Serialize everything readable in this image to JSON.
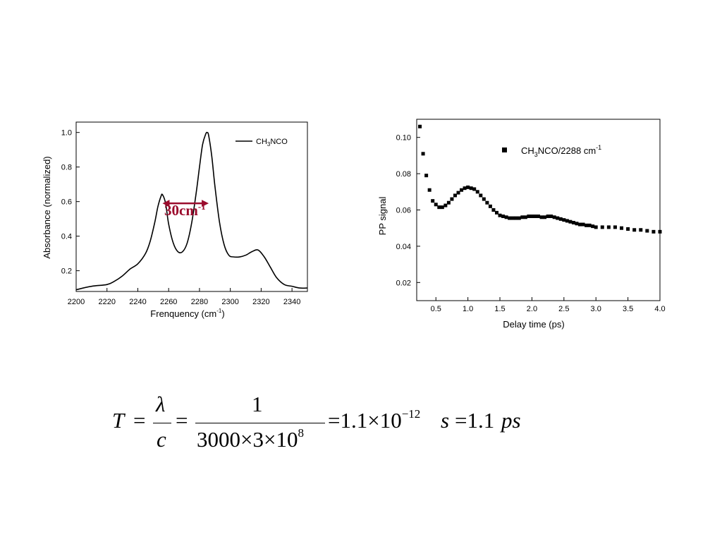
{
  "chart_data": [
    {
      "type": "line",
      "xlabel": "Frenquency (cm",
      "xlabel_sup": "-1",
      "xlabel_end": ")",
      "ylabel": "Absorbance (normalized)",
      "xlim": [
        2200,
        2350
      ],
      "ylim": [
        0.08,
        1.06
      ],
      "x_ticks": [
        2200,
        2220,
        2240,
        2260,
        2280,
        2300,
        2320,
        2340
      ],
      "x_tick_labels": [
        "2200",
        "2220",
        "2240",
        "2260",
        "2280",
        "2300",
        "2320",
        "2340"
      ],
      "y_ticks": [
        0.2,
        0.4,
        0.6,
        0.8,
        1.0
      ],
      "y_tick_labels": [
        "0.2",
        "0.4",
        "0.6",
        "0.8",
        "1.0"
      ],
      "legend_position": "top-right",
      "series": [
        {
          "name": "CH3NCO",
          "name_main": "CH",
          "name_sub": "3",
          "name_end": "NCO",
          "x": [
            2200,
            2210,
            2220,
            2225,
            2230,
            2235,
            2240,
            2245,
            2248,
            2251,
            2253,
            2255,
            2256,
            2258,
            2260,
            2263,
            2266,
            2269,
            2272,
            2275,
            2278,
            2280,
            2282,
            2284,
            2285,
            2286,
            2288,
            2290,
            2293,
            2296,
            2299,
            2302,
            2306,
            2310,
            2314,
            2318,
            2322,
            2326,
            2330,
            2335,
            2340,
            2345,
            2350
          ],
          "y": [
            0.09,
            0.11,
            0.12,
            0.14,
            0.17,
            0.21,
            0.24,
            0.3,
            0.37,
            0.48,
            0.57,
            0.63,
            0.64,
            0.59,
            0.47,
            0.36,
            0.31,
            0.31,
            0.36,
            0.48,
            0.66,
            0.8,
            0.93,
            0.99,
            1.0,
            0.98,
            0.86,
            0.69,
            0.48,
            0.35,
            0.29,
            0.28,
            0.28,
            0.29,
            0.31,
            0.32,
            0.28,
            0.22,
            0.16,
            0.12,
            0.11,
            0.1,
            0.1
          ]
        }
      ],
      "annotation": {
        "text": "30cm",
        "sup": "-1",
        "x_from": 2256,
        "x_to": 2286,
        "y": 0.59,
        "color": "#9b0b2c"
      }
    },
    {
      "type": "scatter",
      "xlabel": "Delay time (ps)",
      "ylabel": "PP signal",
      "xlim": [
        0.2,
        4.0
      ],
      "ylim": [
        0.01,
        0.11
      ],
      "x_ticks": [
        0.5,
        1.0,
        1.5,
        2.0,
        2.5,
        3.0,
        3.5,
        4.0
      ],
      "x_tick_labels": [
        "0.5",
        "1.0",
        "1.5",
        "2.0",
        "2.5",
        "3.0",
        "3.5",
        "4.0"
      ],
      "y_ticks": [
        0.02,
        0.04,
        0.06,
        0.08,
        0.1
      ],
      "y_tick_labels": [
        "0.02",
        "0.04",
        "0.06",
        "0.08",
        "0.10"
      ],
      "legend_position": "top-right",
      "series": [
        {
          "name": "CH3NCO/2288 cm-1",
          "name_main": "CH",
          "name_sub": "3",
          "name_end": "NCO/2288 cm",
          "name_sup": "-1",
          "x": [
            0.25,
            0.3,
            0.35,
            0.4,
            0.45,
            0.5,
            0.55,
            0.6,
            0.65,
            0.7,
            0.75,
            0.8,
            0.85,
            0.9,
            0.95,
            1.0,
            1.05,
            1.1,
            1.15,
            1.2,
            1.25,
            1.3,
            1.35,
            1.4,
            1.45,
            1.5,
            1.55,
            1.6,
            1.65,
            1.7,
            1.75,
            1.8,
            1.85,
            1.9,
            1.95,
            2.0,
            2.05,
            2.1,
            2.15,
            2.2,
            2.25,
            2.3,
            2.35,
            2.4,
            2.45,
            2.5,
            2.55,
            2.6,
            2.65,
            2.7,
            2.75,
            2.8,
            2.85,
            2.9,
            2.95,
            3.0,
            3.1,
            3.2,
            3.3,
            3.4,
            3.5,
            3.6,
            3.7,
            3.8,
            3.9,
            4.0
          ],
          "y": [
            0.106,
            0.091,
            0.079,
            0.071,
            0.065,
            0.063,
            0.0615,
            0.0615,
            0.0625,
            0.064,
            0.066,
            0.068,
            0.0695,
            0.071,
            0.072,
            0.0725,
            0.072,
            0.0715,
            0.07,
            0.068,
            0.066,
            0.064,
            0.062,
            0.06,
            0.0585,
            0.057,
            0.0565,
            0.056,
            0.0555,
            0.0555,
            0.0555,
            0.0555,
            0.056,
            0.056,
            0.0565,
            0.0565,
            0.0565,
            0.0565,
            0.056,
            0.056,
            0.0565,
            0.0565,
            0.056,
            0.0555,
            0.055,
            0.0545,
            0.054,
            0.0535,
            0.053,
            0.0525,
            0.052,
            0.052,
            0.0515,
            0.0515,
            0.051,
            0.0505,
            0.0505,
            0.0505,
            0.0505,
            0.05,
            0.0495,
            0.049,
            0.049,
            0.0485,
            0.048,
            0.048
          ]
        }
      ]
    }
  ],
  "equation": {
    "lhs": "T",
    "eq1": "=",
    "frac1_num": "λ",
    "frac1_den": "c",
    "eq2": "=",
    "frac2_num": "1",
    "frac2_den": "3000×3×10",
    "frac2_den_sup": "8",
    "eq3": "=1.1×10",
    "eq3_sup": "−12",
    "s_unit": "s",
    "eq4": "=1.1",
    "ps_unit": "ps"
  }
}
